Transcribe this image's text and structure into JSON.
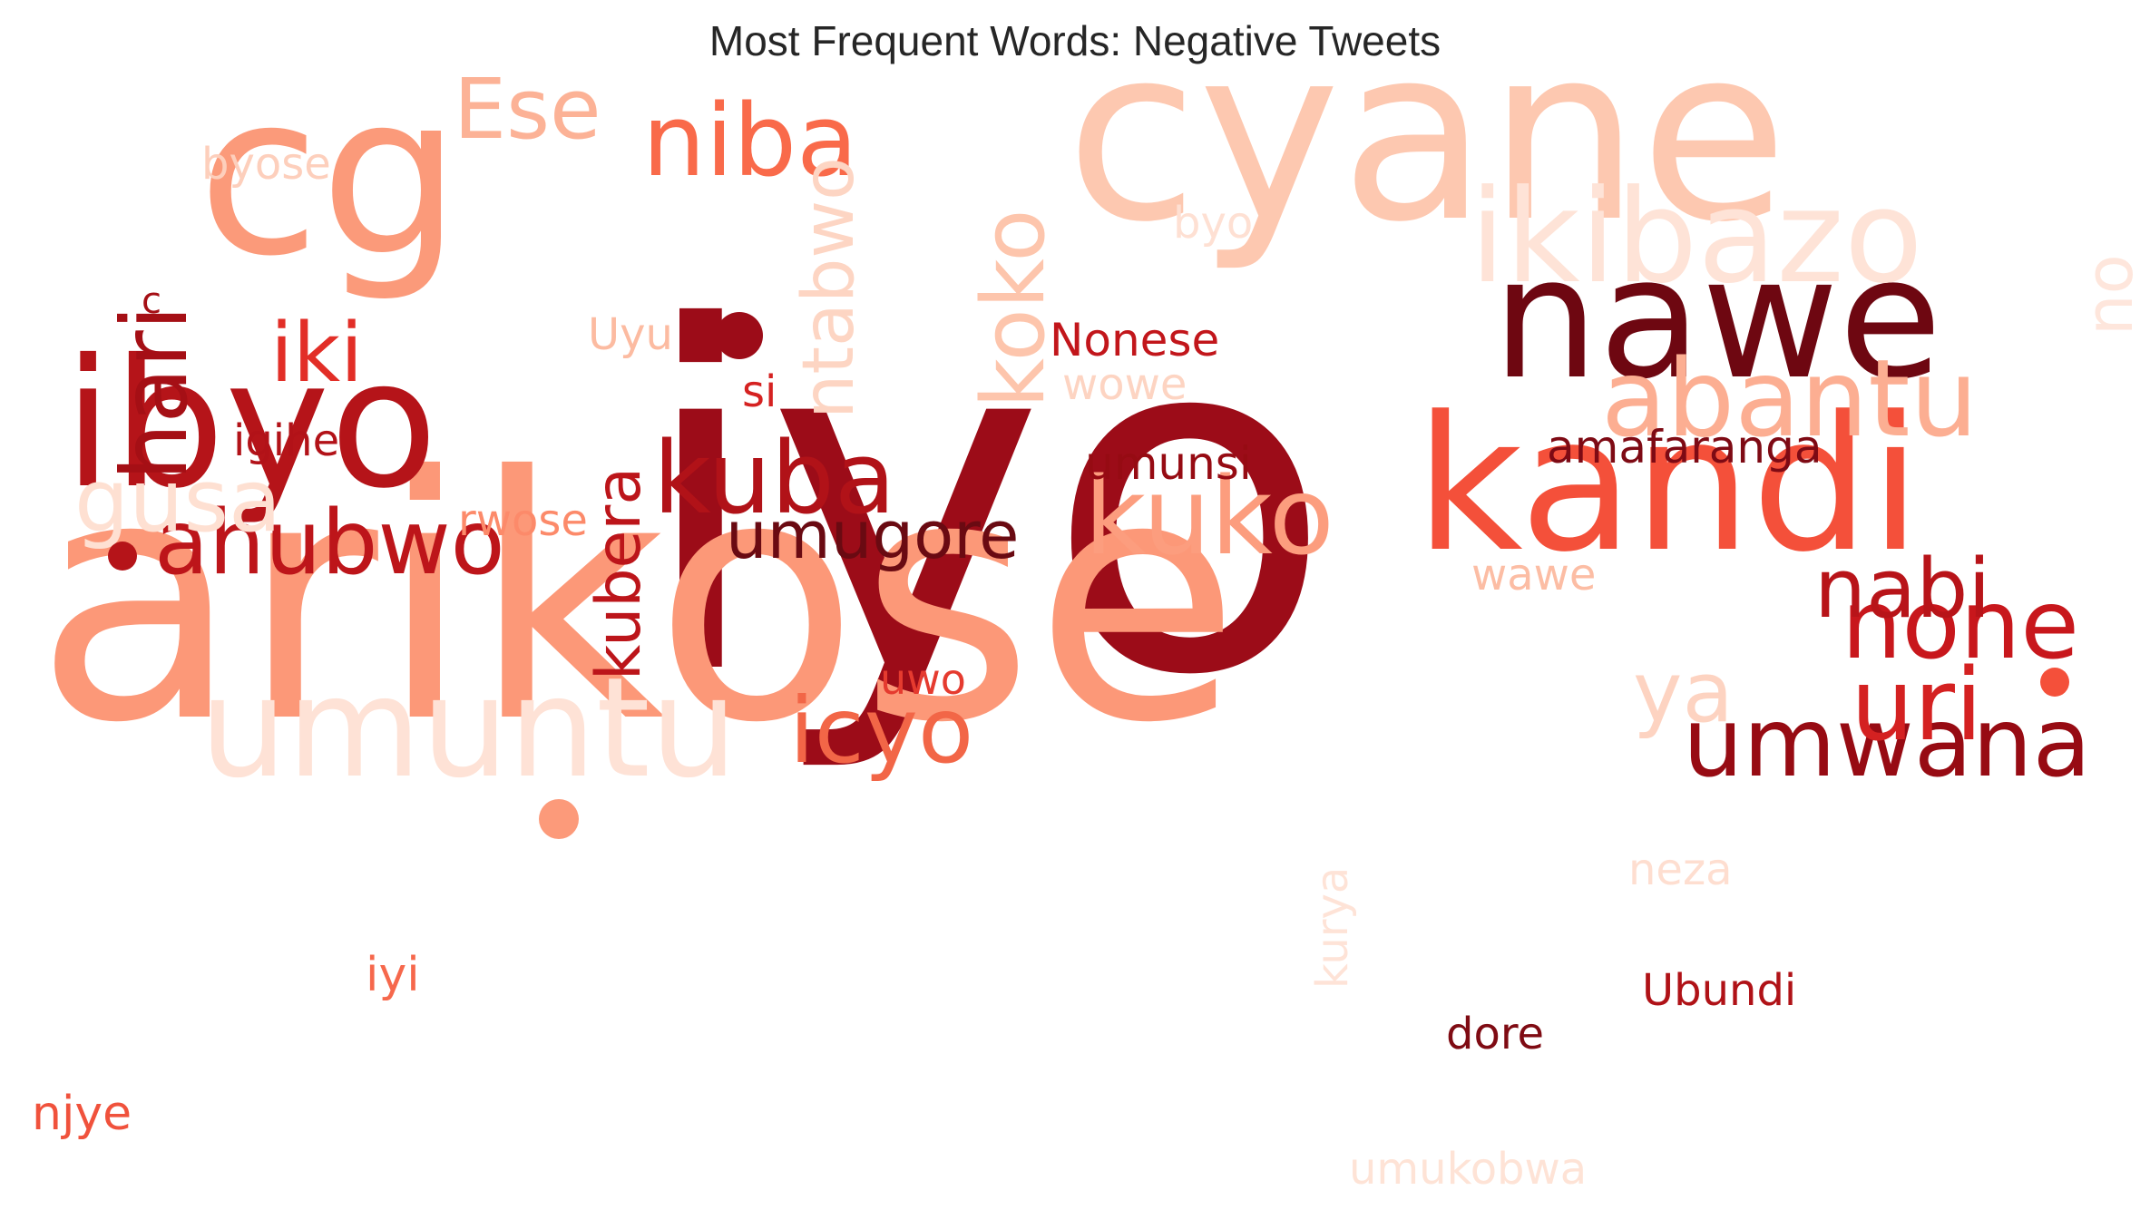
{
  "title": "Most Frequent Words: Negative Tweets",
  "colormap": "Reds",
  "words": [
    {
      "text": "iyo",
      "color": "#9c0c18"
    },
    {
      "text": "arikose",
      "color": "#fc9878"
    },
    {
      "text": "cyane",
      "color": "#fdc8b0"
    },
    {
      "text": "cg",
      "color": "#fb9a7a"
    },
    {
      "text": "kandi",
      "color": "#f4503a"
    },
    {
      "text": "nawe",
      "color": "#6e0711"
    },
    {
      "text": "ibyo",
      "color": "#b51419"
    },
    {
      "text": "umuntu",
      "color": "#fee2d6"
    },
    {
      "text": "ikibazo",
      "color": "#fee3d7"
    },
    {
      "text": "abantu",
      "color": "#fcae92"
    },
    {
      "text": "kuko",
      "color": "#fc9d7e"
    },
    {
      "text": "umwana",
      "color": "#970b13"
    },
    {
      "text": "kuba",
      "color": "#b11218"
    },
    {
      "text": "niba",
      "color": "#f96a4a"
    },
    {
      "text": "uri",
      "color": "#d42121"
    },
    {
      "text": "ahubwo",
      "color": "#bd151a"
    },
    {
      "text": "none",
      "color": "#c8171c"
    },
    {
      "text": "icyo",
      "color": "#f26647"
    },
    {
      "text": "hari",
      "color": "#a50f15"
    },
    {
      "text": "koko",
      "color": "#fdc5ac"
    },
    {
      "text": "umugore",
      "color": "#6a0a12"
    },
    {
      "text": "nabi",
      "color": "#b81419"
    },
    {
      "text": "gusa",
      "color": "#fee0d2"
    },
    {
      "text": "Ese",
      "color": "#fcb296"
    },
    {
      "text": "iki",
      "color": "#e22e27"
    },
    {
      "text": "ntabwo",
      "color": "#fdd5c3"
    },
    {
      "text": "kubera",
      "color": "#bc151a"
    },
    {
      "text": "ya",
      "color": "#fdd3c1"
    },
    {
      "text": "amafaranga",
      "color": "#7e0a14"
    },
    {
      "text": "umunsi",
      "color": "#960b13"
    },
    {
      "text": "Nonese",
      "color": "#c2161b"
    },
    {
      "text": "wawe",
      "color": "#fcbda4"
    },
    {
      "text": "rwose",
      "color": "#fc8a6a"
    },
    {
      "text": "dore",
      "color": "#7f0b13"
    },
    {
      "text": "Ubundi",
      "color": "#b01217"
    },
    {
      "text": "neza",
      "color": "#feded0"
    },
    {
      "text": "igihe",
      "color": "#b21218"
    },
    {
      "text": "njye",
      "color": "#f0523c"
    },
    {
      "text": "iyi",
      "color": "#f6684c"
    },
    {
      "text": "uwo",
      "color": "#e53b2f"
    },
    {
      "text": "byose",
      "color": "#fdcfbc"
    },
    {
      "text": "Uyu",
      "color": "#fcbba1"
    },
    {
      "text": "wowe",
      "color": "#fdd4c2"
    },
    {
      "text": "si",
      "color": "#d52221"
    },
    {
      "text": "byo",
      "color": "#fee0d3"
    },
    {
      "text": "no",
      "color": "#fee6dc"
    },
    {
      "text": "umukobwa",
      "color": "#fee3d6"
    },
    {
      "text": "kurya",
      "color": "#fee3d7"
    },
    {
      "text": "c",
      "color": "#a50f15"
    },
    {
      "text": "dot-a",
      "color": "#9c0c18"
    },
    {
      "text": "dot-b",
      "color": "#fc9a7a"
    },
    {
      "text": "dot-c",
      "color": "#b51419"
    },
    {
      "text": "dot-d",
      "color": "#f4503a"
    }
  ]
}
